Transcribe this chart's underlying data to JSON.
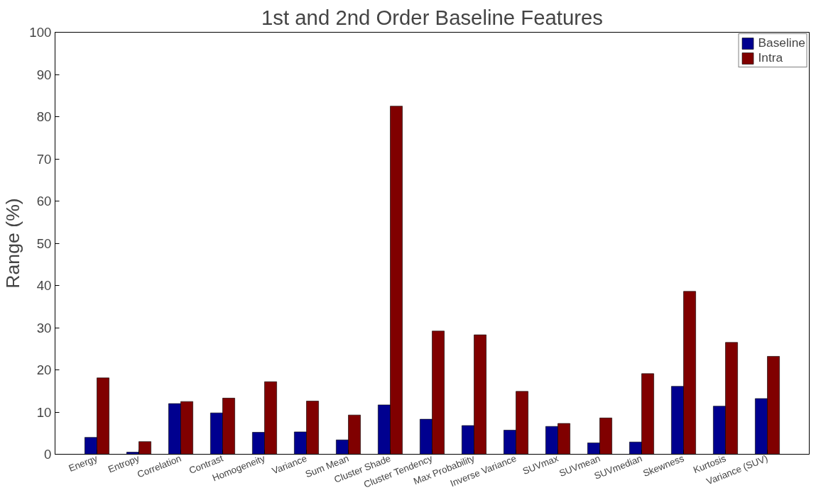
{
  "chart_data": {
    "type": "bar",
    "title": "1st and 2nd Order Baseline Features",
    "ylabel": "Range (%)",
    "categories": [
      "Energy",
      "Entropy",
      "Correlation",
      "Contrast",
      "Homogeneity",
      "Variance",
      "Sum Mean",
      "Cluster Shade",
      "Cluster Tendency",
      "Max Probability",
      "Inverse Variance",
      "SUVmax",
      "SUVmean",
      "SUVmedian",
      "Skewness",
      "Kurtosis",
      "Variance (SUV)"
    ],
    "series": [
      {
        "name": "Baseline",
        "color": "#00008f",
        "values": [
          4.0,
          0.5,
          12.0,
          9.8,
          5.2,
          5.3,
          3.4,
          11.7,
          8.3,
          6.8,
          5.7,
          6.6,
          2.7,
          2.9,
          16.1,
          11.4,
          13.2
        ]
      },
      {
        "name": "Intra",
        "color": "#800000",
        "values": [
          18.1,
          3.0,
          12.5,
          13.3,
          17.2,
          12.6,
          9.3,
          82.5,
          29.2,
          28.3,
          14.9,
          7.3,
          8.6,
          19.1,
          38.6,
          26.5,
          23.2
        ]
      }
    ],
    "ylim": [
      0,
      100
    ],
    "yticks": [
      0,
      10,
      20,
      30,
      40,
      50,
      60,
      70,
      80,
      90,
      100
    ],
    "grid": false,
    "legend": "top right"
  }
}
